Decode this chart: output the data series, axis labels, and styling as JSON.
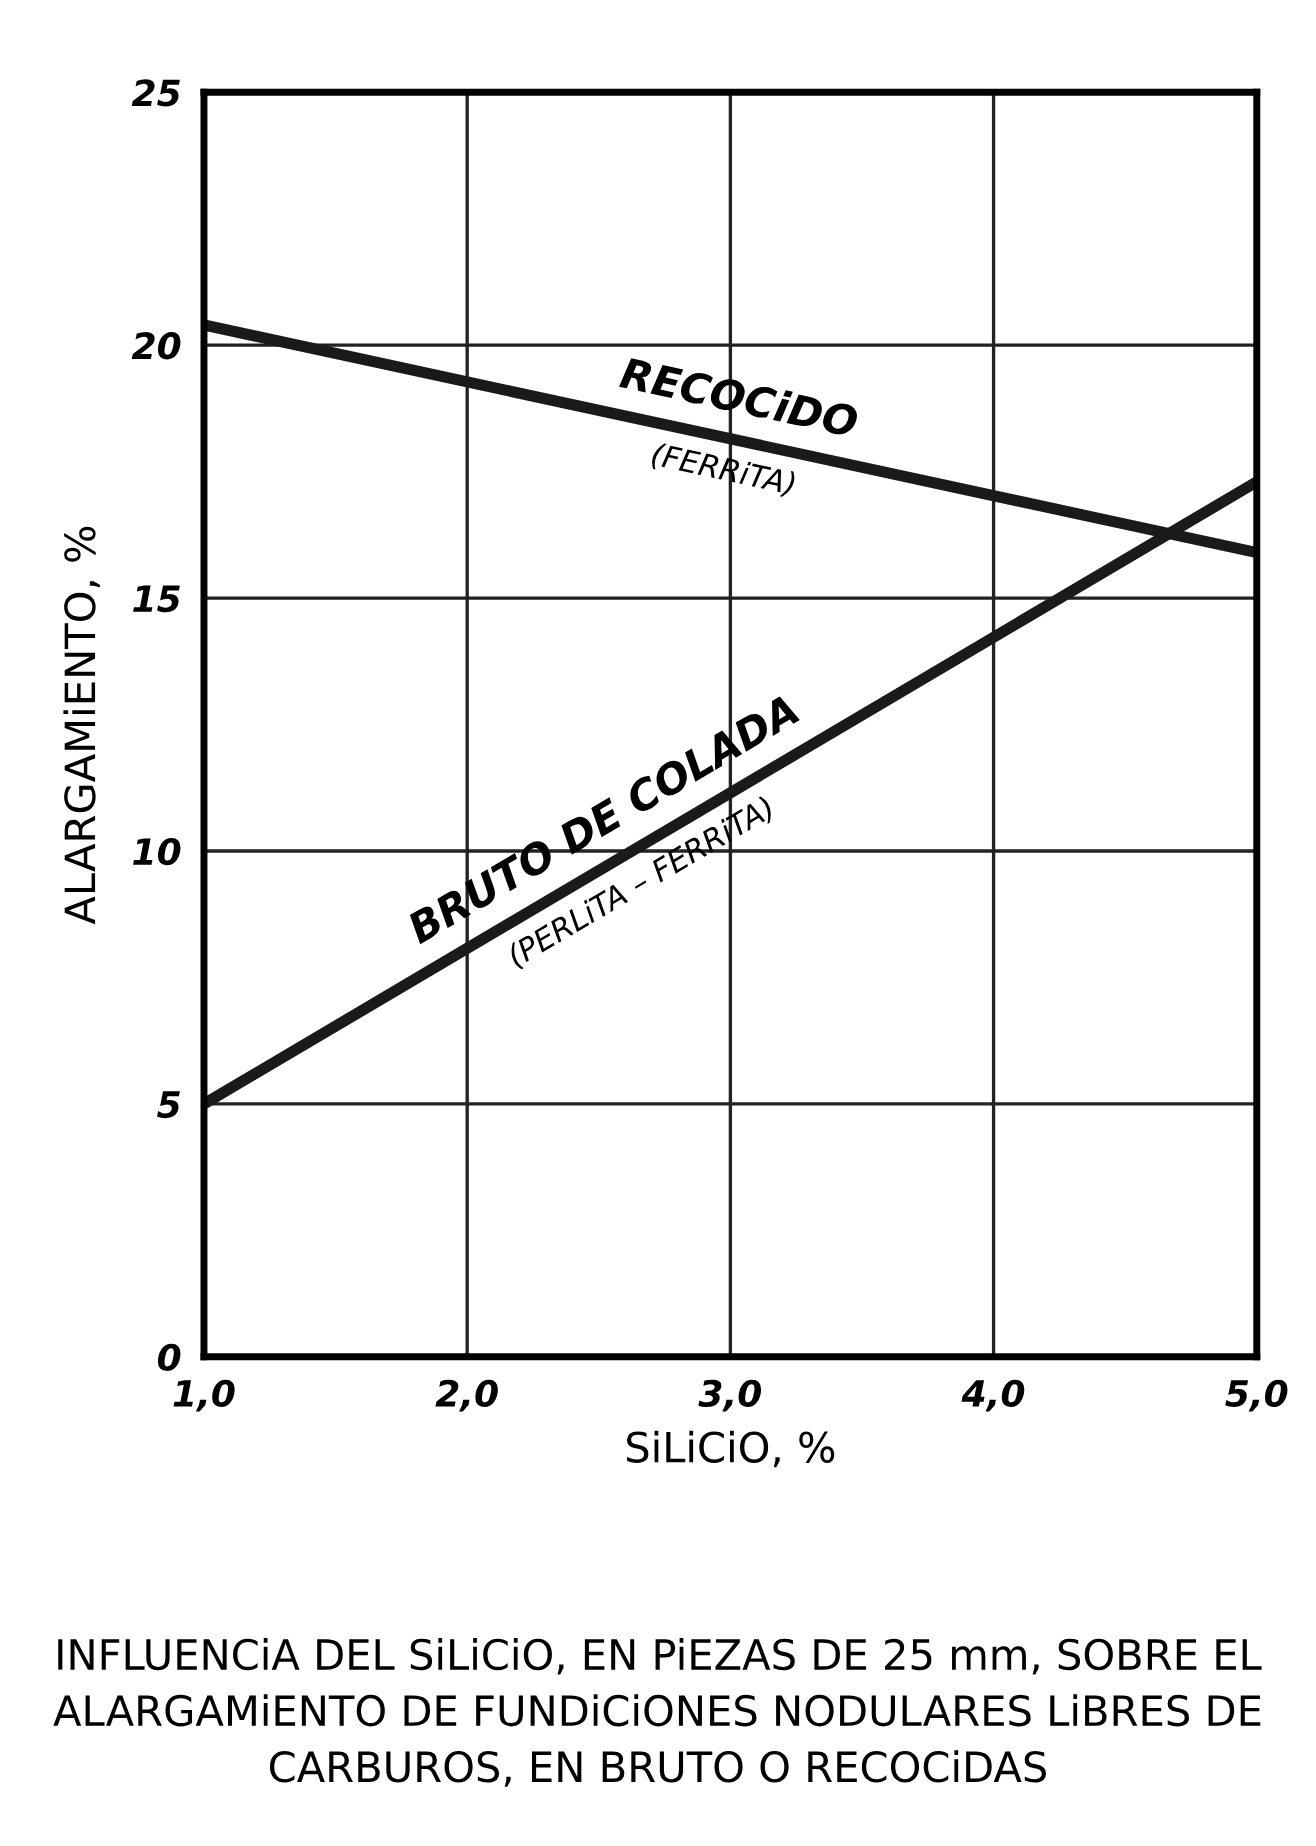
{
  "chart_data": {
    "type": "line",
    "xlabel": "SiLiCiO, %",
    "ylabel": "ALARGAMiENTO, %",
    "x": [
      1.0,
      5.0
    ],
    "series": [
      {
        "name": "RECOCiDO",
        "color": "#1a1a1a",
        "values": [
          20.4,
          15.9
        ]
      },
      {
        "name": "BRUTO DE COLADA",
        "color": "#1a1a1a",
        "values": [
          5.0,
          17.3
        ]
      }
    ],
    "xlim": [
      1.0,
      5.0
    ],
    "ylim": [
      0,
      25
    ],
    "xticks": [
      {
        "value": 1.0,
        "label": "1,0"
      },
      {
        "value": 2.0,
        "label": "2,0"
      },
      {
        "value": 3.0,
        "label": "3,0"
      },
      {
        "value": 4.0,
        "label": "4,0"
      },
      {
        "value": 5.0,
        "label": "5,0"
      }
    ],
    "yticks": [
      0,
      5,
      10,
      15,
      20,
      25
    ],
    "grid": true,
    "marker": "none",
    "line_style": "solid",
    "legend": false,
    "annotations": [
      "(FERRiTA)",
      "(PERLiTA – FERRiTA)",
      "INFLUENCiA DEL SiLiCiO, EN PiEZAS DE 25 mm, SOBRE EL ALARGAMiENTO DE FUNDiCiONES NODULARES LiBRES DE CARBUROS, EN BRUTO O RECOCiDAS"
    ]
  }
}
